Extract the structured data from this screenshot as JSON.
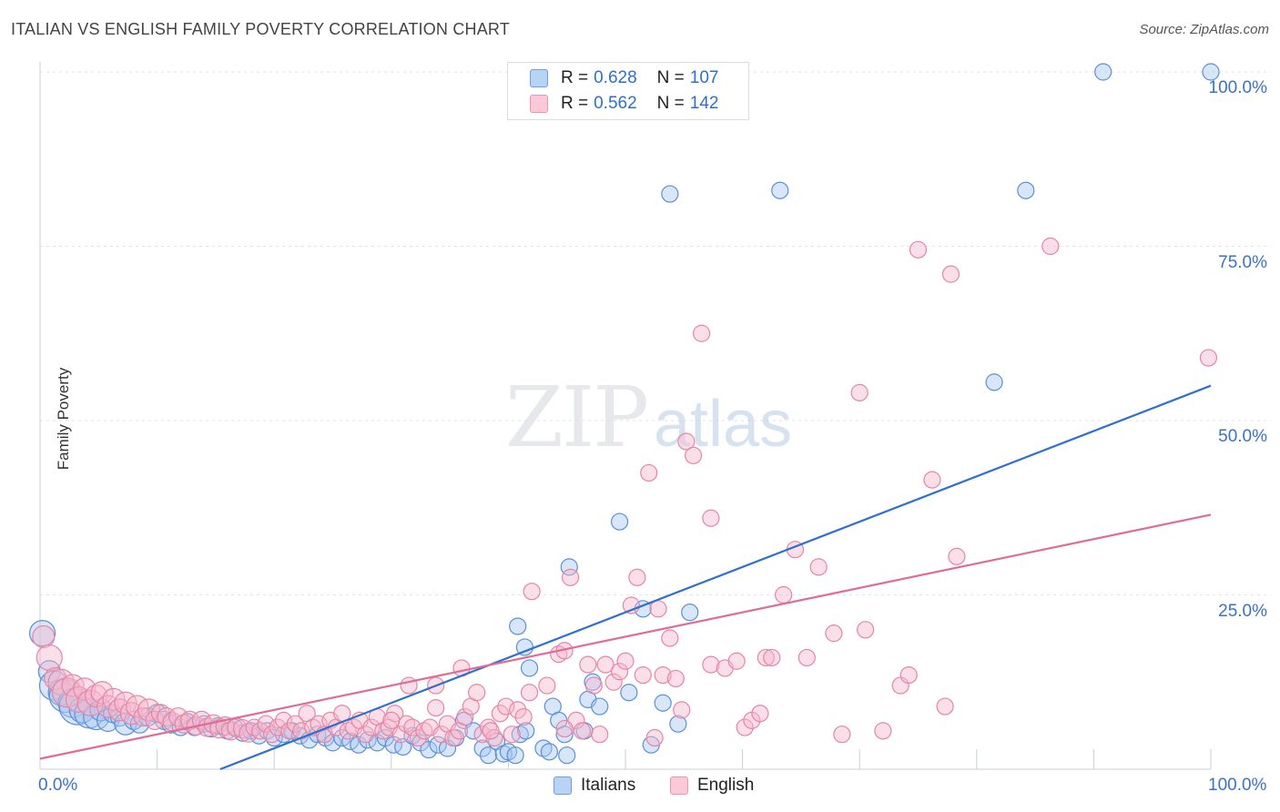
{
  "header": {
    "title": "ITALIAN VS ENGLISH FAMILY POVERTY CORRELATION CHART",
    "source": "Source: ZipAtlas.com"
  },
  "watermark": {
    "zip": "ZIP",
    "atlas": "atlas"
  },
  "legend_top": {
    "rows": [
      {
        "r_label": "R =",
        "r_value": "0.628",
        "n_label": "N =",
        "n_value": "107",
        "color": "#a9c8f2"
      },
      {
        "r_label": "R =",
        "r_value": "0.562",
        "n_label": "N =",
        "n_value": "142",
        "color": "#f7b8cc"
      }
    ]
  },
  "legend_bottom": {
    "italians": "Italians",
    "english": "English"
  },
  "colors": {
    "italians_fill": "#a9c8f2",
    "italians_stroke": "#5b8fd6",
    "italians_line": "#2f6fcf",
    "english_fill": "#f7b8cc",
    "english_stroke": "#e685a4",
    "english_line": "#e06b96",
    "grid": "#dde3ea",
    "tick_label": "#3a72c6"
  },
  "chart_data": {
    "type": "scatter",
    "title": "ITALIAN VS ENGLISH FAMILY POVERTY CORRELATION CHART",
    "ylabel": "Family Poverty",
    "xlabel": "",
    "xlim": [
      0,
      100
    ],
    "ylim": [
      0,
      100
    ],
    "x_tick_labels": [
      "0.0%",
      "100.0%"
    ],
    "y_tick_labels": [
      "25.0%",
      "50.0%",
      "75.0%",
      "100.0%"
    ],
    "y_ticks": [
      25,
      50,
      75,
      100
    ],
    "grid": true,
    "legend_placement": "top-center",
    "series": [
      {
        "name": "Italians",
        "R": 0.628,
        "N": 107,
        "trend": {
          "x": [
            0,
            100
          ],
          "y": [
            -10,
            55
          ]
        },
        "points": [
          [
            0.2,
            19.5,
            14
          ],
          [
            0.8,
            14,
            12
          ],
          [
            1.2,
            12,
            16
          ],
          [
            1.8,
            11,
            14
          ],
          [
            2.2,
            10.5,
            18
          ],
          [
            2.8,
            9.5,
            16
          ],
          [
            3.2,
            9,
            20
          ],
          [
            3.6,
            8.5,
            14
          ],
          [
            4.2,
            8,
            16
          ],
          [
            4.8,
            7.5,
            14
          ],
          [
            5.2,
            8.5,
            12
          ],
          [
            5.8,
            7,
            12
          ],
          [
            6.2,
            8,
            10
          ],
          [
            6.8,
            7.5,
            10
          ],
          [
            7.3,
            6.5,
            12
          ],
          [
            8,
            7,
            10
          ],
          [
            8.5,
            6.5,
            10
          ],
          [
            9.2,
            7.5,
            10
          ],
          [
            10,
            8,
            10
          ],
          [
            10.6,
            7,
            10
          ],
          [
            11.2,
            6.5,
            10
          ],
          [
            12,
            6,
            9
          ],
          [
            12.6,
            6.8,
            9
          ],
          [
            13.2,
            6,
            9
          ],
          [
            14,
            6.5,
            9
          ],
          [
            14.6,
            5.8,
            9
          ],
          [
            15.2,
            6.2,
            9
          ],
          [
            16,
            5.5,
            9
          ],
          [
            16.6,
            6,
            9
          ],
          [
            17.3,
            5.2,
            9
          ],
          [
            18,
            5.5,
            9
          ],
          [
            18.7,
            4.8,
            9
          ],
          [
            19.4,
            5.5,
            9
          ],
          [
            20,
            4.5,
            9
          ],
          [
            20.8,
            5,
            9
          ],
          [
            21.5,
            5.5,
            9
          ],
          [
            22.2,
            4.8,
            9
          ],
          [
            23,
            4.2,
            9
          ],
          [
            23.7,
            5,
            9
          ],
          [
            24.4,
            4.5,
            9
          ],
          [
            25,
            3.8,
            9
          ],
          [
            25.8,
            4.5,
            9
          ],
          [
            26.5,
            4,
            9
          ],
          [
            27.2,
            3.5,
            9
          ],
          [
            28,
            4.2,
            9
          ],
          [
            28.8,
            3.8,
            9
          ],
          [
            29.5,
            4.5,
            9
          ],
          [
            30.2,
            3.5,
            9
          ],
          [
            31,
            3.2,
            9
          ],
          [
            31.8,
            4.8,
            9
          ],
          [
            32.5,
            3.8,
            9
          ],
          [
            33.2,
            2.8,
            9
          ],
          [
            34,
            3.5,
            9
          ],
          [
            34.8,
            3,
            9
          ],
          [
            35.5,
            4.5,
            9
          ],
          [
            36.2,
            7,
            9
          ],
          [
            37,
            5.5,
            9
          ],
          [
            37.8,
            3,
            9
          ],
          [
            38.3,
            2,
            9
          ],
          [
            39,
            4,
            9
          ],
          [
            39.6,
            2.2,
            9
          ],
          [
            40,
            2.5,
            9
          ],
          [
            40.6,
            2,
            9
          ],
          [
            41,
            5,
            9
          ],
          [
            41.5,
            5.5,
            9
          ],
          [
            40.8,
            20.5,
            9
          ],
          [
            41.4,
            17.5,
            9
          ],
          [
            41.8,
            14.5,
            9
          ],
          [
            43,
            3,
            9
          ],
          [
            43.5,
            2.5,
            9
          ],
          [
            43.8,
            9,
            9
          ],
          [
            44.3,
            7,
            9
          ],
          [
            44.8,
            5,
            9
          ],
          [
            45,
            2,
            9
          ],
          [
            45.2,
            29,
            9
          ],
          [
            46.5,
            5.5,
            9
          ],
          [
            46.8,
            10,
            9
          ],
          [
            47.2,
            12.5,
            9
          ],
          [
            47.8,
            9,
            9
          ],
          [
            49.5,
            35.5,
            9
          ],
          [
            50.3,
            11,
            9
          ],
          [
            51.5,
            23,
            9
          ],
          [
            52.2,
            3.5,
            9
          ],
          [
            53.2,
            9.5,
            9
          ],
          [
            54.5,
            6.5,
            9
          ],
          [
            55.5,
            22.5,
            9
          ],
          [
            53.8,
            82.5,
            9
          ],
          [
            63.2,
            83,
            9
          ],
          [
            81.5,
            55.5,
            9
          ],
          [
            84.2,
            83,
            9
          ],
          [
            90.8,
            100,
            9
          ],
          [
            100,
            100,
            9
          ]
        ]
      },
      {
        "name": "English",
        "R": 0.562,
        "N": 142,
        "trend": {
          "x": [
            0,
            100
          ],
          "y": [
            1.5,
            36.5
          ]
        },
        "points": [
          [
            0.3,
            19,
            12
          ],
          [
            0.8,
            16,
            14
          ],
          [
            1.3,
            13,
            12
          ],
          [
            1.8,
            12.5,
            14
          ],
          [
            2.3,
            11,
            16
          ],
          [
            2.8,
            12,
            12
          ],
          [
            3.3,
            10,
            14
          ],
          [
            3.8,
            11.5,
            12
          ],
          [
            4.3,
            9.5,
            14
          ],
          [
            4.8,
            10.5,
            12
          ],
          [
            5.3,
            11,
            12
          ],
          [
            5.8,
            9,
            12
          ],
          [
            6.3,
            10,
            12
          ],
          [
            6.8,
            8.5,
            12
          ],
          [
            7.3,
            9.5,
            12
          ],
          [
            7.8,
            8,
            12
          ],
          [
            8.3,
            9,
            12
          ],
          [
            8.8,
            7.5,
            10
          ],
          [
            9.3,
            8.5,
            12
          ],
          [
            9.8,
            7,
            10
          ],
          [
            10.3,
            8,
            10
          ],
          [
            10.8,
            7.5,
            10
          ],
          [
            11.3,
            6.8,
            10
          ],
          [
            11.8,
            7.5,
            10
          ],
          [
            12.3,
            6.5,
            10
          ],
          [
            12.8,
            7,
            10
          ],
          [
            13.3,
            6.2,
            10
          ],
          [
            13.8,
            7,
            10
          ],
          [
            14.3,
            6,
            10
          ],
          [
            14.8,
            6.5,
            10
          ],
          [
            15.3,
            5.8,
            10
          ],
          [
            15.8,
            6.2,
            10
          ],
          [
            16.3,
            5.5,
            10
          ],
          [
            16.8,
            6,
            10
          ],
          [
            17.3,
            5.8,
            10
          ],
          [
            17.8,
            5.2,
            10
          ],
          [
            18.3,
            6,
            9
          ],
          [
            18.8,
            5.5,
            9
          ],
          [
            19.3,
            6.5,
            9
          ],
          [
            19.8,
            5,
            9
          ],
          [
            20.3,
            6,
            9
          ],
          [
            20.8,
            7,
            9
          ],
          [
            21.3,
            5.5,
            9
          ],
          [
            21.8,
            6.5,
            9
          ],
          [
            22.3,
            5.5,
            9
          ],
          [
            22.8,
            8,
            9
          ],
          [
            23.3,
            6,
            9
          ],
          [
            23.8,
            6.5,
            9
          ],
          [
            24.3,
            5,
            9
          ],
          [
            24.8,
            7,
            9
          ],
          [
            25.3,
            6,
            9
          ],
          [
            25.8,
            8,
            9
          ],
          [
            26.3,
            5.5,
            9
          ],
          [
            26.8,
            6,
            9
          ],
          [
            27.3,
            7,
            9
          ],
          [
            27.8,
            5,
            9
          ],
          [
            28.3,
            6,
            9
          ],
          [
            28.8,
            7.5,
            9
          ],
          [
            29.3,
            5.5,
            9
          ],
          [
            29.8,
            6,
            9
          ],
          [
            30.3,
            8,
            9
          ],
          [
            30.8,
            5,
            9
          ],
          [
            31.3,
            6.5,
            9
          ],
          [
            31.8,
            6,
            9
          ],
          [
            32.3,
            4.5,
            9
          ],
          [
            32.8,
            5.5,
            9
          ],
          [
            33.3,
            6,
            9
          ],
          [
            33.8,
            12,
            9
          ],
          [
            34.3,
            5,
            9
          ],
          [
            34.8,
            6.5,
            9
          ],
          [
            35.3,
            4.5,
            9
          ],
          [
            35.8,
            5.5,
            9
          ],
          [
            36.3,
            7.5,
            9
          ],
          [
            36.8,
            9,
            9
          ],
          [
            37.3,
            11,
            9
          ],
          [
            37.8,
            5,
            9
          ],
          [
            38.3,
            6,
            9
          ],
          [
            38.8,
            4.5,
            9
          ],
          [
            39.3,
            8,
            9
          ],
          [
            39.8,
            9,
            9
          ],
          [
            40.3,
            5,
            9
          ],
          [
            40.8,
            8.5,
            9
          ],
          [
            41.3,
            7.5,
            9
          ],
          [
            41.8,
            11,
            9
          ],
          [
            42,
            25.5,
            9
          ],
          [
            43.3,
            12,
            9
          ],
          [
            44.3,
            16.5,
            9
          ],
          [
            44.8,
            17,
            9
          ],
          [
            45.3,
            27.5,
            9
          ],
          [
            45.8,
            7,
            9
          ],
          [
            46.3,
            5.5,
            9
          ],
          [
            46.8,
            15,
            9
          ],
          [
            47.3,
            12,
            9
          ],
          [
            47.8,
            5,
            9
          ],
          [
            48.3,
            15,
            9
          ],
          [
            49,
            12.5,
            9
          ],
          [
            49.5,
            14,
            9
          ],
          [
            50,
            15.5,
            9
          ],
          [
            50.5,
            23.5,
            9
          ],
          [
            51,
            27.5,
            9
          ],
          [
            51.5,
            13.5,
            9
          ],
          [
            52,
            42.5,
            9
          ],
          [
            52.5,
            4.5,
            9
          ],
          [
            53.2,
            13.5,
            9
          ],
          [
            53.8,
            18.8,
            9
          ],
          [
            54.3,
            13,
            9
          ],
          [
            54.8,
            8.5,
            9
          ],
          [
            55.2,
            47,
            9
          ],
          [
            55.8,
            45,
            9
          ],
          [
            56.5,
            62.5,
            9
          ],
          [
            57.3,
            15,
            9
          ],
          [
            58.5,
            14.5,
            9
          ],
          [
            59.5,
            15.5,
            9
          ],
          [
            60.2,
            6,
            9
          ],
          [
            60.8,
            7,
            9
          ],
          [
            61.5,
            8,
            9
          ],
          [
            62,
            16,
            9
          ],
          [
            62.5,
            16,
            9
          ],
          [
            63.5,
            25,
            9
          ],
          [
            64.5,
            31.5,
            9
          ],
          [
            65.5,
            16,
            9
          ],
          [
            66.5,
            29,
            9
          ],
          [
            67.8,
            19.5,
            9
          ],
          [
            68.5,
            5,
            9
          ],
          [
            70,
            54,
            9
          ],
          [
            70.5,
            20,
            9
          ],
          [
            72,
            5.5,
            9
          ],
          [
            73.5,
            12,
            9
          ],
          [
            74.2,
            13.5,
            9
          ],
          [
            75,
            74.5,
            9
          ],
          [
            76.2,
            41.5,
            9
          ],
          [
            77.3,
            9,
            9
          ],
          [
            77.8,
            71,
            9
          ],
          [
            78.3,
            30.5,
            9
          ],
          [
            86.3,
            75,
            9
          ],
          [
            99.8,
            59,
            9
          ],
          [
            57.3,
            36,
            9
          ],
          [
            52.8,
            23,
            9
          ],
          [
            44.8,
            5.8,
            9
          ],
          [
            38.5,
            5.5,
            9
          ],
          [
            31.5,
            12,
            9
          ],
          [
            30,
            7,
            9
          ],
          [
            33.8,
            8.8,
            9
          ],
          [
            36,
            14.5,
            9
          ]
        ]
      }
    ]
  }
}
